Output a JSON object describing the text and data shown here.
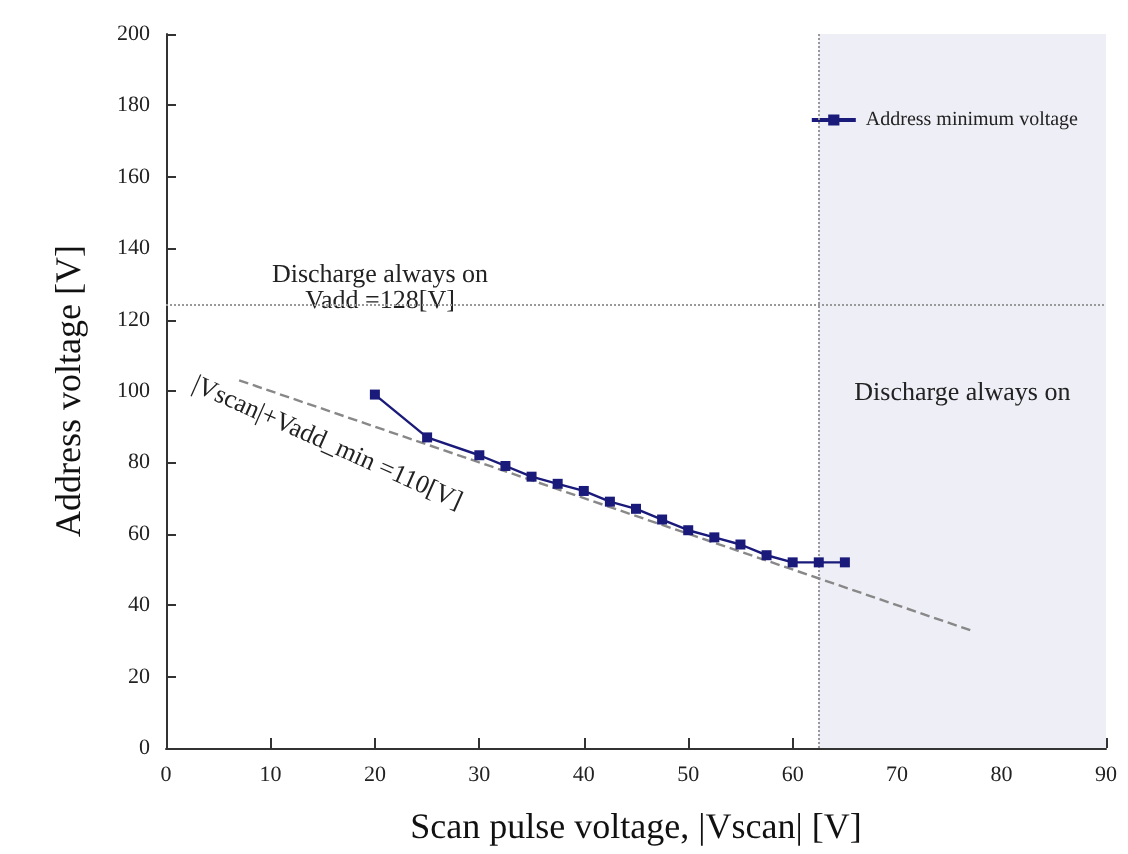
{
  "chart_data": {
    "type": "line",
    "xlabel": "Scan pulse voltage, |Vscan| [V]",
    "ylabel": "Address voltage [V]",
    "x": [
      20,
      25,
      30,
      32.5,
      35,
      37.5,
      40,
      42.5,
      45,
      47.5,
      50,
      52.5,
      55,
      57.5,
      60,
      62.5,
      65
    ],
    "series": [
      {
        "name": "Address minimum voltage",
        "color": "#1a1a7a",
        "values": [
          99,
          87,
          82,
          79,
          76,
          74,
          72,
          69,
          67,
          64,
          61,
          59,
          57,
          54,
          52,
          52,
          52
        ],
        "marker": "square"
      },
      {
        "type": "line",
        "x": [
          7,
          77
        ],
        "values": [
          103,
          33
        ],
        "color": "#888888",
        "line_style": "dashed",
        "marker": "none"
      }
    ],
    "xlim": [
      0,
      90
    ],
    "xticks": [
      0,
      10,
      20,
      30,
      40,
      50,
      60,
      70,
      80,
      90
    ],
    "ylim": [
      0,
      200
    ],
    "yticks": [
      0,
      20,
      40,
      60,
      80,
      100,
      120,
      140,
      160,
      180,
      200
    ],
    "ref_lines": [
      {
        "axis": "y",
        "value": 124,
        "color": "#999999",
        "line_style": "dotted"
      },
      {
        "axis": "x",
        "value": 62.5,
        "color": "#999999",
        "line_style": "dotted"
      }
    ],
    "bands": [
      {
        "axis": "x",
        "from": 62.5,
        "to": 90,
        "label": "Discharge always on",
        "color": "#eeeef6"
      }
    ],
    "annotations": [
      "Discharge always on\nVadd =128[V]",
      "|Vscan|+Vadd_min =110[V]"
    ],
    "legend": "top right",
    "grid": false
  }
}
